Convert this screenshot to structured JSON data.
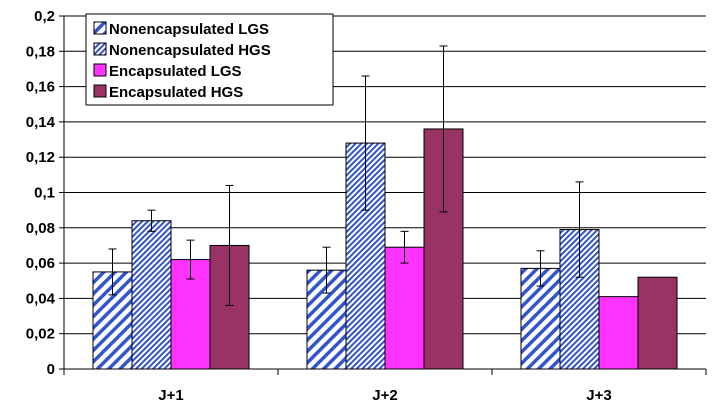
{
  "chart_data": {
    "type": "bar",
    "categories": [
      "J+1",
      "J+2",
      "J+3"
    ],
    "series": [
      {
        "name": "Nonencapsulated LGS",
        "values": [
          0.055,
          0.056,
          0.057
        ],
        "err": [
          0.013,
          0.013,
          0.01
        ],
        "fill": "hatch-wide",
        "color": "#3355cc"
      },
      {
        "name": "Nonencapsulated HGS",
        "values": [
          0.084,
          0.128,
          0.079
        ],
        "err": [
          0.006,
          0.038,
          0.027
        ],
        "fill": "hatch-dense",
        "color": "#3355cc"
      },
      {
        "name": "Encapsulated LGS",
        "values": [
          0.062,
          0.069,
          0.041
        ],
        "err": [
          0.011,
          0.009,
          null
        ],
        "fill": "solid",
        "color": "#ff33ff"
      },
      {
        "name": "Encapsulated HGS",
        "values": [
          0.07,
          0.136,
          0.052
        ],
        "err": [
          0.034,
          0.047,
          null
        ],
        "fill": "solid",
        "color": "#993366"
      }
    ],
    "yticks": [
      "0",
      "0,02",
      "0,04",
      "0,06",
      "0,08",
      "0,1",
      "0,12",
      "0,14",
      "0,16",
      "0,18",
      "0,2"
    ],
    "ylim": [
      0,
      0.2
    ],
    "grid": true,
    "legend_position": "top-left"
  }
}
